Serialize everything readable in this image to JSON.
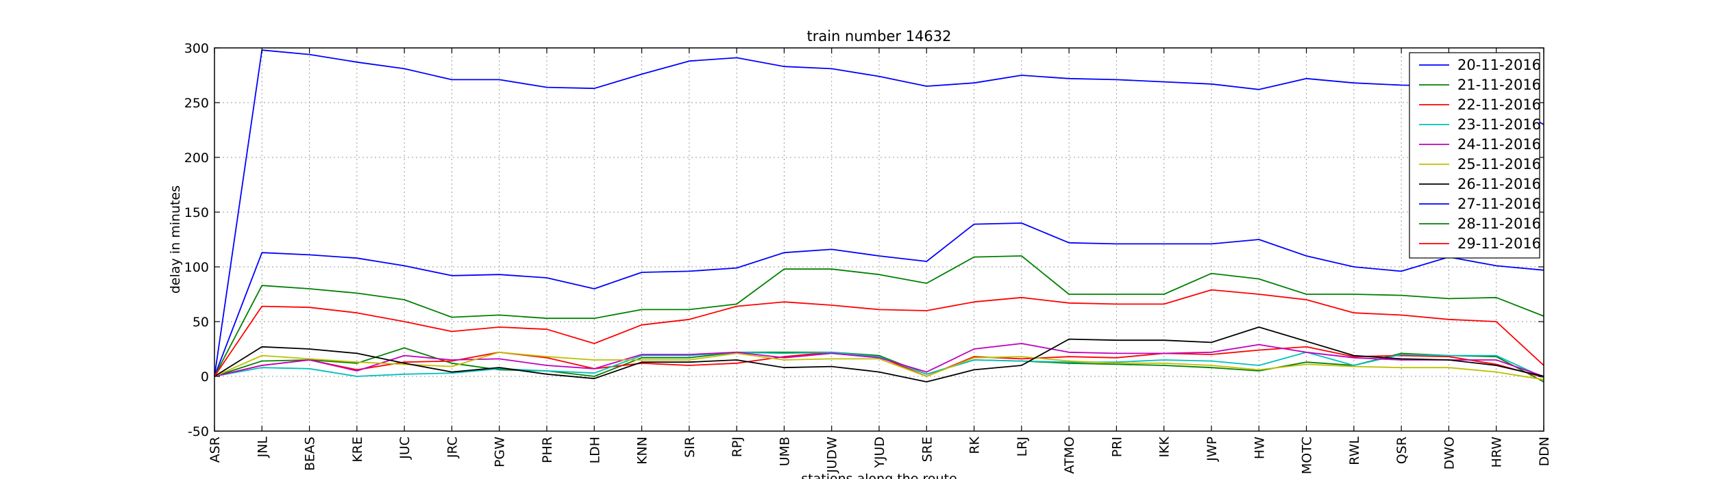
{
  "chart_data": {
    "type": "line",
    "title": "train number 14632",
    "xlabel": "stations along the route",
    "ylabel": "delay in minutes",
    "ylim": [
      -50,
      300
    ],
    "yticks": [
      -50,
      0,
      50,
      100,
      150,
      200,
      250,
      300
    ],
    "grid": true,
    "legend_position": "top-right",
    "categories": [
      "ASR",
      "JNL",
      "BEAS",
      "KRE",
      "JUC",
      "JRC",
      "PGW",
      "PHR",
      "LDH",
      "KNN",
      "SIR",
      "RPJ",
      "UMB",
      "JUDW",
      "YJUD",
      "SRE",
      "RK",
      "LRJ",
      "ATMO",
      "PRI",
      "IKK",
      "JWP",
      "HW",
      "MOTC",
      "RWL",
      "QSR",
      "DWO",
      "HRW",
      "DDN"
    ],
    "series": [
      {
        "name": "20-11-2016",
        "color": "#0000ff",
        "values": [
          0,
          298,
          294,
          287,
          281,
          271,
          271,
          264,
          263,
          276,
          288,
          291,
          283,
          281,
          274,
          265,
          268,
          275,
          272,
          271,
          269,
          267,
          262,
          272,
          268,
          266,
          265,
          255,
          230
        ]
      },
      {
        "name": "21-11-2016",
        "color": "#008000",
        "values": [
          0,
          14,
          15,
          12,
          26,
          12,
          6,
          5,
          0,
          17,
          17,
          22,
          22,
          22,
          19,
          2,
          15,
          14,
          12,
          11,
          10,
          8,
          5,
          13,
          10,
          21,
          19,
          18,
          -5
        ]
      },
      {
        "name": "22-11-2016",
        "color": "#ff0000",
        "values": [
          0,
          10,
          15,
          6,
          13,
          14,
          22,
          17,
          7,
          12,
          10,
          12,
          18,
          22,
          18,
          0,
          18,
          16,
          18,
          17,
          21,
          20,
          24,
          27,
          18,
          19,
          18,
          11,
          -1
        ]
      },
      {
        "name": "23-11-2016",
        "color": "#00bfbf",
        "values": [
          0,
          8,
          7,
          0,
          2,
          3,
          7,
          5,
          3,
          19,
          19,
          22,
          21,
          22,
          18,
          2,
          15,
          14,
          13,
          13,
          15,
          14,
          10,
          22,
          10,
          20,
          19,
          19,
          -1
        ]
      },
      {
        "name": "24-11-2016",
        "color": "#bf00bf",
        "values": [
          0,
          10,
          15,
          5,
          19,
          15,
          16,
          10,
          7,
          20,
          20,
          22,
          17,
          21,
          17,
          4,
          25,
          30,
          22,
          21,
          21,
          22,
          29,
          22,
          17,
          15,
          15,
          15,
          0
        ]
      },
      {
        "name": "25-11-2016",
        "color": "#bfbf00",
        "values": [
          0,
          19,
          16,
          13,
          11,
          9,
          22,
          18,
          15,
          15,
          15,
          21,
          15,
          16,
          16,
          0,
          17,
          18,
          14,
          12,
          12,
          10,
          6,
          11,
          9,
          8,
          8,
          4,
          -3
        ]
      },
      {
        "name": "26-11-2016",
        "color": "#000000",
        "values": [
          0,
          27,
          25,
          21,
          12,
          4,
          8,
          2,
          -2,
          13,
          13,
          15,
          8,
          9,
          4,
          -5,
          6,
          10,
          34,
          33,
          33,
          31,
          45,
          32,
          19,
          16,
          15,
          10,
          0
        ]
      },
      {
        "name": "27-11-2016",
        "color": "#0000ff",
        "values": [
          0,
          113,
          111,
          108,
          101,
          92,
          93,
          90,
          80,
          95,
          96,
          99,
          113,
          116,
          110,
          105,
          139,
          140,
          122,
          121,
          121,
          121,
          125,
          110,
          100,
          96,
          109,
          101,
          97
        ]
      },
      {
        "name": "28-11-2016",
        "color": "#008000",
        "values": [
          0,
          83,
          80,
          76,
          70,
          54,
          56,
          53,
          53,
          61,
          61,
          66,
          98,
          98,
          93,
          85,
          109,
          110,
          75,
          75,
          75,
          94,
          89,
          75,
          75,
          74,
          71,
          72,
          55
        ]
      },
      {
        "name": "29-11-2016",
        "color": "#ff0000",
        "values": [
          0,
          64,
          63,
          58,
          50,
          41,
          45,
          43,
          30,
          47,
          52,
          64,
          68,
          65,
          61,
          60,
          68,
          72,
          67,
          66,
          66,
          79,
          75,
          70,
          58,
          56,
          52,
          50,
          10
        ]
      }
    ]
  }
}
